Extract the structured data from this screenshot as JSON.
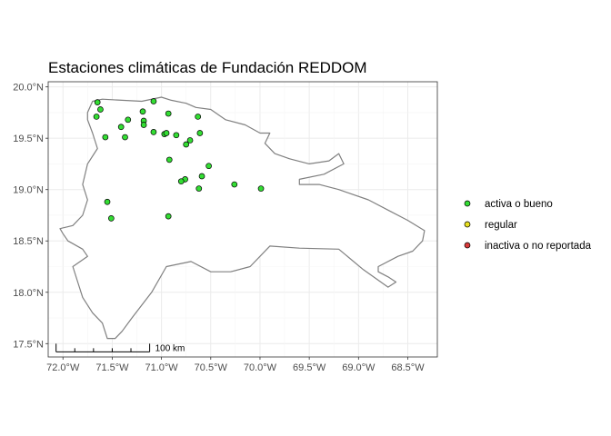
{
  "chart_data": {
    "type": "scatter",
    "title": "Estaciones climáticas de Fundación REDDOM",
    "xlabel": "",
    "ylabel": "",
    "xlim": [
      -72.15,
      -68.2
    ],
    "ylim": [
      17.37,
      20.05
    ],
    "x_ticks": [
      {
        "value": -72.0,
        "label": "72.0°W"
      },
      {
        "value": -71.5,
        "label": "71.5°W"
      },
      {
        "value": -71.0,
        "label": "71.0°W"
      },
      {
        "value": -70.5,
        "label": "70.5°W"
      },
      {
        "value": -70.0,
        "label": "70.0°W"
      },
      {
        "value": -69.5,
        "label": "69.5°W"
      },
      {
        "value": -69.0,
        "label": "69.0°W"
      },
      {
        "value": -68.5,
        "label": "68.5°W"
      }
    ],
    "y_ticks": [
      {
        "value": 17.5,
        "label": "17.5°N"
      },
      {
        "value": 18.0,
        "label": "18.0°N"
      },
      {
        "value": 18.5,
        "label": "18.5°N"
      },
      {
        "value": 19.0,
        "label": "19.0°N"
      },
      {
        "value": 19.5,
        "label": "19.5°N"
      },
      {
        "value": 20.0,
        "label": "20.0°N"
      }
    ],
    "grid": true,
    "legend_position": "right",
    "categories": [
      {
        "label": "activa o bueno",
        "color": "#33dd33"
      },
      {
        "label": "regular",
        "color": "#e8e020"
      },
      {
        "label": "inactiva o no reportada",
        "color": "#d93a3a"
      }
    ],
    "points": [
      {
        "x": -71.65,
        "y": 19.85,
        "status": "activa o bueno"
      },
      {
        "x": -71.08,
        "y": 19.86,
        "status": "activa o bueno"
      },
      {
        "x": -71.62,
        "y": 19.78,
        "status": "activa o bueno"
      },
      {
        "x": -71.66,
        "y": 19.71,
        "status": "activa o bueno"
      },
      {
        "x": -71.19,
        "y": 19.76,
        "status": "activa o bueno"
      },
      {
        "x": -70.93,
        "y": 19.74,
        "status": "activa o bueno"
      },
      {
        "x": -71.34,
        "y": 19.68,
        "status": "activa o bueno"
      },
      {
        "x": -71.18,
        "y": 19.67,
        "status": "activa o bueno"
      },
      {
        "x": -71.18,
        "y": 19.63,
        "status": "activa o bueno"
      },
      {
        "x": -70.63,
        "y": 19.71,
        "status": "activa o bueno"
      },
      {
        "x": -71.41,
        "y": 19.61,
        "status": "activa o bueno"
      },
      {
        "x": -71.08,
        "y": 19.56,
        "status": "activa o bueno"
      },
      {
        "x": -70.97,
        "y": 19.54,
        "status": "activa o bueno"
      },
      {
        "x": -70.95,
        "y": 19.55,
        "status": "activa o bueno"
      },
      {
        "x": -70.85,
        "y": 19.53,
        "status": "activa o bueno"
      },
      {
        "x": -70.61,
        "y": 19.55,
        "status": "activa o bueno"
      },
      {
        "x": -71.57,
        "y": 19.51,
        "status": "activa o bueno"
      },
      {
        "x": -71.37,
        "y": 19.51,
        "status": "activa o bueno"
      },
      {
        "x": -70.71,
        "y": 19.48,
        "status": "activa o bueno"
      },
      {
        "x": -70.75,
        "y": 19.44,
        "status": "activa o bueno"
      },
      {
        "x": -70.92,
        "y": 19.29,
        "status": "activa o bueno"
      },
      {
        "x": -70.52,
        "y": 19.23,
        "status": "activa o bueno"
      },
      {
        "x": -70.59,
        "y": 19.13,
        "status": "activa o bueno"
      },
      {
        "x": -70.76,
        "y": 19.1,
        "status": "activa o bueno"
      },
      {
        "x": -70.8,
        "y": 19.08,
        "status": "activa o bueno"
      },
      {
        "x": -70.26,
        "y": 19.05,
        "status": "activa o bueno"
      },
      {
        "x": -70.62,
        "y": 19.01,
        "status": "activa o bueno"
      },
      {
        "x": -69.99,
        "y": 19.01,
        "status": "activa o bueno"
      },
      {
        "x": -71.55,
        "y": 18.88,
        "status": "activa o bueno"
      },
      {
        "x": -70.93,
        "y": 18.74,
        "status": "activa o bueno"
      },
      {
        "x": -71.51,
        "y": 18.72,
        "status": "activa o bueno"
      }
    ],
    "scale_bar_label": "100 km",
    "outline": [
      [
        -71.75,
        19.75
      ],
      [
        -71.7,
        19.86
      ],
      [
        -71.6,
        19.88
      ],
      [
        -71.4,
        19.87
      ],
      [
        -71.2,
        19.86
      ],
      [
        -71.0,
        19.9
      ],
      [
        -70.9,
        19.87
      ],
      [
        -70.75,
        19.84
      ],
      [
        -70.65,
        19.8
      ],
      [
        -70.5,
        19.78
      ],
      [
        -70.35,
        19.68
      ],
      [
        -70.15,
        19.63
      ],
      [
        -70.0,
        19.55
      ],
      [
        -69.9,
        19.55
      ],
      [
        -69.95,
        19.45
      ],
      [
        -69.85,
        19.35
      ],
      [
        -69.7,
        19.3
      ],
      [
        -69.5,
        19.25
      ],
      [
        -69.3,
        19.28
      ],
      [
        -69.2,
        19.35
      ],
      [
        -69.15,
        19.25
      ],
      [
        -69.35,
        19.15
      ],
      [
        -69.6,
        19.1
      ],
      [
        -69.6,
        19.05
      ],
      [
        -69.4,
        19.05
      ],
      [
        -69.2,
        19.0
      ],
      [
        -68.9,
        18.9
      ],
      [
        -68.7,
        18.8
      ],
      [
        -68.5,
        18.7
      ],
      [
        -68.33,
        18.6
      ],
      [
        -68.35,
        18.5
      ],
      [
        -68.45,
        18.4
      ],
      [
        -68.6,
        18.35
      ],
      [
        -68.8,
        18.25
      ],
      [
        -68.8,
        18.2
      ],
      [
        -68.7,
        18.15
      ],
      [
        -68.62,
        18.1
      ],
      [
        -68.7,
        18.05
      ],
      [
        -68.95,
        18.22
      ],
      [
        -69.2,
        18.42
      ],
      [
        -69.6,
        18.43
      ],
      [
        -69.9,
        18.45
      ],
      [
        -70.1,
        18.25
      ],
      [
        -70.3,
        18.2
      ],
      [
        -70.5,
        18.2
      ],
      [
        -70.7,
        18.3
      ],
      [
        -70.95,
        18.25
      ],
      [
        -71.1,
        18.0
      ],
      [
        -71.3,
        17.75
      ],
      [
        -71.4,
        17.62
      ],
      [
        -71.47,
        17.55
      ],
      [
        -71.55,
        17.55
      ],
      [
        -71.6,
        17.7
      ],
      [
        -71.7,
        17.8
      ],
      [
        -71.8,
        17.95
      ],
      [
        -71.85,
        18.1
      ],
      [
        -71.9,
        18.25
      ],
      [
        -71.75,
        18.35
      ],
      [
        -71.8,
        18.42
      ],
      [
        -71.95,
        18.5
      ],
      [
        -72.0,
        18.57
      ],
      [
        -72.03,
        18.62
      ],
      [
        -71.9,
        18.65
      ],
      [
        -71.8,
        18.75
      ],
      [
        -71.75,
        18.9
      ],
      [
        -71.8,
        19.05
      ],
      [
        -71.75,
        19.25
      ],
      [
        -71.65,
        19.4
      ],
      [
        -71.7,
        19.55
      ],
      [
        -71.75,
        19.68
      ],
      [
        -71.75,
        19.75
      ]
    ]
  }
}
